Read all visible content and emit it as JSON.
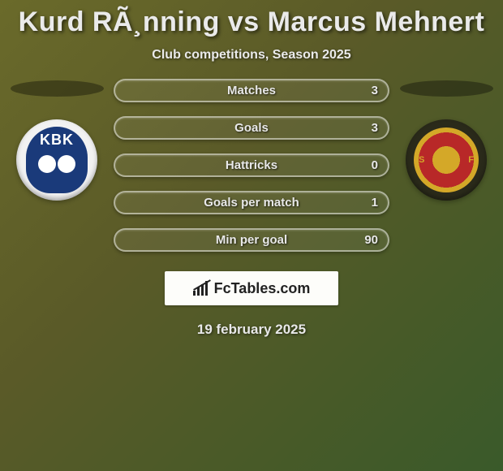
{
  "title": "Kurd RÃ¸nning vs Marcus Mehnert",
  "subtitle": "Club competitions, Season 2025",
  "stats": [
    {
      "label": "Matches",
      "value": "3"
    },
    {
      "label": "Goals",
      "value": "3"
    },
    {
      "label": "Hattricks",
      "value": "0"
    },
    {
      "label": "Goals per match",
      "value": "1"
    },
    {
      "label": "Min per goal",
      "value": "90"
    }
  ],
  "left_club": {
    "abbrev": "KBK"
  },
  "right_club": {
    "s": "S",
    "f": "F"
  },
  "brand": "FcTables.com",
  "date": "19 february 2025",
  "styling": {
    "pill_border_color": "rgba(255,255,255,0.5)",
    "pill_bg": "rgba(255,255,255,0.06)",
    "text_color": "#e8e8e8",
    "title_fontsize": 34,
    "subtitle_fontsize": 16,
    "stat_fontsize": 15,
    "brand_bg": "#fdfdfa",
    "bg_gradient": [
      "#6a6a2a",
      "#5a5a28",
      "#4a5a28",
      "#3a5a2a"
    ]
  }
}
